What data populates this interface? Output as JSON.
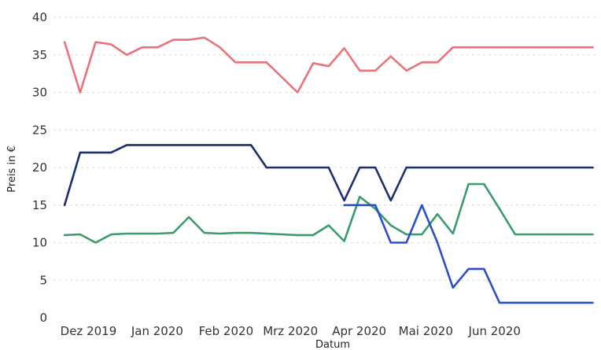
{
  "chart_data": {
    "type": "line",
    "title": "",
    "xlabel": "Datum",
    "ylabel": "Preis in €",
    "ylim": [
      0,
      40
    ],
    "yticks": [
      0,
      5,
      10,
      15,
      20,
      25,
      30,
      35,
      40
    ],
    "xlim": [
      "2019-11-28",
      "2020-07-31"
    ],
    "xticks": [
      {
        "date": "2019-12-01",
        "label": "Dez 2019"
      },
      {
        "date": "2020-01-01",
        "label": "Jan 2020"
      },
      {
        "date": "2020-02-01",
        "label": "Feb 2020"
      },
      {
        "date": "2020-03-01",
        "label": "Mrz 2020"
      },
      {
        "date": "2020-04-01",
        "label": "Apr 2020"
      },
      {
        "date": "2020-05-01",
        "label": "Mai 2020"
      },
      {
        "date": "2020-06-01",
        "label": "Jun 2020"
      }
    ],
    "grid": "horizontal",
    "legend": "none",
    "series": [
      {
        "color": "#e8737a",
        "x": [
          "2019-12-03",
          "2019-12-10",
          "2019-12-17",
          "2019-12-24",
          "2019-12-31",
          "2020-01-07",
          "2020-01-14",
          "2020-01-21",
          "2020-01-28",
          "2020-02-04",
          "2020-02-11",
          "2020-02-18",
          "2020-02-25",
          "2020-03-03",
          "2020-03-10",
          "2020-03-17",
          "2020-03-24",
          "2020-03-31",
          "2020-04-07",
          "2020-04-14",
          "2020-04-21",
          "2020-04-28",
          "2020-05-05",
          "2020-05-12",
          "2020-05-19",
          "2020-05-26",
          "2020-06-02",
          "2020-06-09",
          "2020-06-16",
          "2020-06-23",
          "2020-06-30",
          "2020-07-07",
          "2020-07-14",
          "2020-07-21",
          "2020-07-28"
        ],
        "values": [
          36.7,
          30.0,
          36.7,
          36.4,
          35.0,
          36.0,
          36.0,
          37.0,
          37.0,
          37.3,
          36.0,
          34.0,
          34.0,
          34.0,
          32.0,
          30.0,
          33.9,
          33.5,
          35.9,
          32.9,
          32.9,
          34.8,
          32.9,
          34.0,
          34.0,
          36.0,
          36.0,
          36.0,
          36.0,
          36.0,
          36.0,
          36.0,
          36.0,
          36.0,
          36.0
        ]
      },
      {
        "color": "#1b2f6e",
        "x": [
          "2019-12-03",
          "2019-12-10",
          "2019-12-17",
          "2019-12-24",
          "2019-12-31",
          "2020-01-07",
          "2020-01-14",
          "2020-01-21",
          "2020-01-28",
          "2020-02-04",
          "2020-02-11",
          "2020-02-18",
          "2020-02-25",
          "2020-03-03",
          "2020-03-10",
          "2020-03-17",
          "2020-03-24",
          "2020-03-31",
          "2020-04-07",
          "2020-04-14",
          "2020-04-21",
          "2020-04-28",
          "2020-05-05",
          "2020-05-12",
          "2020-05-19",
          "2020-05-26",
          "2020-06-02",
          "2020-06-09",
          "2020-06-16",
          "2020-06-23",
          "2020-06-30",
          "2020-07-07",
          "2020-07-14",
          "2020-07-21",
          "2020-07-28"
        ],
        "values": [
          15.0,
          22.0,
          22.0,
          22.0,
          23.0,
          23.0,
          23.0,
          23.0,
          23.0,
          23.0,
          23.0,
          23.0,
          23.0,
          20.0,
          20.0,
          20.0,
          20.0,
          20.0,
          15.6,
          20.0,
          20.0,
          15.6,
          20.0,
          20.0,
          20.0,
          20.0,
          20.0,
          20.0,
          20.0,
          20.0,
          20.0,
          20.0,
          20.0,
          20.0,
          20.0
        ]
      },
      {
        "color": "#3a9b6b",
        "x": [
          "2019-12-03",
          "2019-12-10",
          "2019-12-17",
          "2019-12-24",
          "2019-12-31",
          "2020-01-07",
          "2020-01-14",
          "2020-01-21",
          "2020-01-28",
          "2020-02-04",
          "2020-02-11",
          "2020-02-18",
          "2020-02-25",
          "2020-03-03",
          "2020-03-10",
          "2020-03-17",
          "2020-03-24",
          "2020-03-31",
          "2020-04-07",
          "2020-04-14",
          "2020-04-21",
          "2020-04-28",
          "2020-05-05",
          "2020-05-12",
          "2020-05-19",
          "2020-05-26",
          "2020-06-02",
          "2020-06-09",
          "2020-06-16",
          "2020-06-23",
          "2020-06-30",
          "2020-07-07",
          "2020-07-14",
          "2020-07-21",
          "2020-07-28"
        ],
        "values": [
          11.0,
          11.1,
          10.0,
          11.1,
          11.2,
          11.2,
          11.2,
          11.3,
          13.4,
          11.3,
          11.2,
          11.3,
          11.3,
          11.2,
          11.1,
          11.0,
          11.0,
          12.3,
          10.2,
          16.1,
          14.5,
          12.3,
          11.1,
          11.1,
          13.8,
          11.2,
          17.8,
          17.8,
          14.5,
          11.1,
          11.1,
          11.1,
          11.1,
          11.1,
          11.1
        ]
      },
      {
        "color": "#2b4fc4",
        "x": [
          "2020-04-07",
          "2020-04-14",
          "2020-04-21",
          "2020-04-28",
          "2020-05-05",
          "2020-05-12",
          "2020-05-19",
          "2020-05-26",
          "2020-06-02",
          "2020-06-09",
          "2020-06-16",
          "2020-06-23",
          "2020-06-30",
          "2020-07-07",
          "2020-07-14",
          "2020-07-21",
          "2020-07-28"
        ],
        "values": [
          15.0,
          15.0,
          15.0,
          10.0,
          10.0,
          15.0,
          10.0,
          4.0,
          6.5,
          6.5,
          2.0,
          2.0,
          2.0,
          2.0,
          2.0,
          2.0,
          2.0
        ]
      }
    ]
  }
}
